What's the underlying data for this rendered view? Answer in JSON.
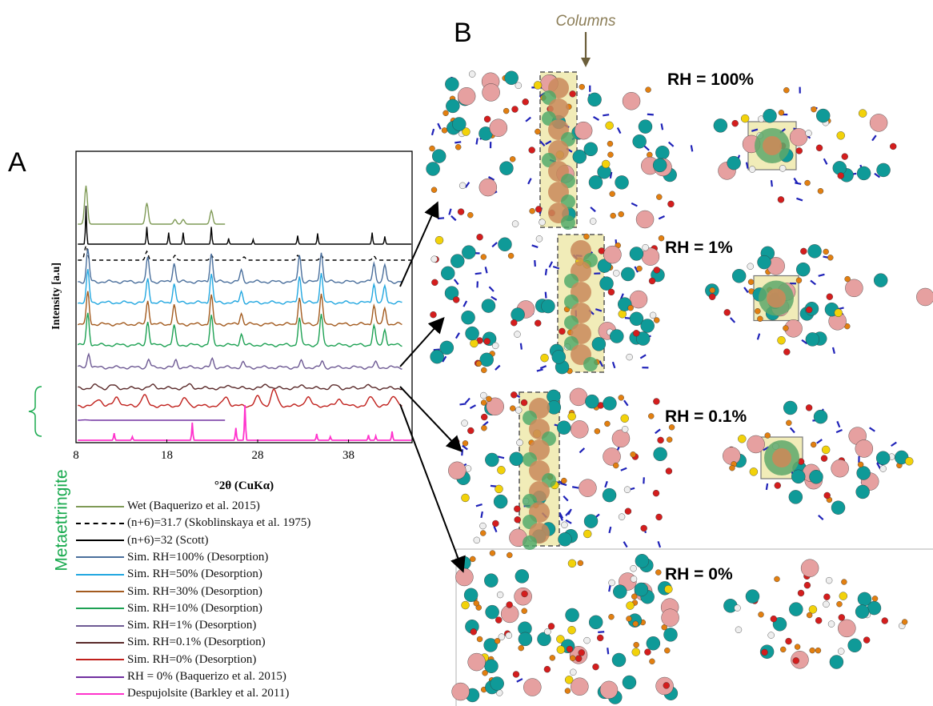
{
  "panels": {
    "a_label": "A",
    "b_label": "B"
  },
  "chart_data": {
    "type": "line",
    "xlabel": "°2θ (CuKα)",
    "ylabel": "Intensity [a.u]",
    "xticks": [
      8,
      18,
      28,
      38
    ],
    "xlim": [
      8,
      45
    ],
    "grid": false,
    "legend_position": "below",
    "bracket_label": "Metaettringite",
    "series": [
      {
        "name": "Wet (Baquerizo et al. 2015)",
        "color": "#7f9a56",
        "dash": "solid",
        "xmax": 24.5,
        "peaks": [
          [
            9.1,
            1.0
          ],
          [
            15.8,
            0.55
          ],
          [
            18.9,
            0.12
          ],
          [
            19.8,
            0.12
          ],
          [
            22.9,
            0.35
          ]
        ]
      },
      {
        "name": "(n+6)=31.7 (Skoblinskaya et al. 1975)",
        "color": "#000000",
        "dash": "dashed",
        "xmax": 45,
        "peaks": [
          [
            9.1,
            0.9
          ],
          [
            15.8,
            0.55
          ],
          [
            18.9,
            0.3
          ],
          [
            22.9,
            0.3
          ],
          [
            26.5,
            0.2
          ],
          [
            32.4,
            0.3
          ],
          [
            35.0,
            0.3
          ],
          [
            40.8,
            0.25
          ]
        ]
      },
      {
        "name": "(n+6)=32 (Scott)",
        "color": "#000000",
        "dash": "solid",
        "xmax": 45,
        "peaks": [
          [
            9.1,
            1.0
          ],
          [
            15.8,
            0.45
          ],
          [
            18.2,
            0.3
          ],
          [
            19.8,
            0.3
          ],
          [
            22.9,
            0.45
          ],
          [
            24.8,
            0.15
          ],
          [
            27.5,
            0.12
          ],
          [
            32.4,
            0.22
          ],
          [
            34.6,
            0.28
          ],
          [
            40.6,
            0.3
          ],
          [
            42.0,
            0.2
          ]
        ]
      },
      {
        "name": "Sim. RH=100% (Desorption)",
        "color": "#4a6f9c",
        "dash": "solid",
        "xmax": 44,
        "peaks": [
          [
            9.3,
            1.0
          ],
          [
            15.9,
            0.75
          ],
          [
            18.8,
            0.6
          ],
          [
            22.9,
            0.9
          ],
          [
            26.2,
            0.35
          ],
          [
            32.6,
            0.85
          ],
          [
            35.0,
            0.95
          ],
          [
            40.8,
            0.6
          ],
          [
            42.0,
            0.5
          ]
        ]
      },
      {
        "name": "Sim. RH=50% (Desorption)",
        "color": "#22a7e0",
        "dash": "solid",
        "xmax": 44,
        "peaks": [
          [
            9.3,
            1.0
          ],
          [
            15.9,
            0.75
          ],
          [
            18.8,
            0.6
          ],
          [
            22.9,
            0.9
          ],
          [
            26.2,
            0.35
          ],
          [
            32.6,
            0.85
          ],
          [
            35.0,
            0.95
          ],
          [
            40.8,
            0.6
          ],
          [
            42.0,
            0.5
          ]
        ]
      },
      {
        "name": "Sim. RH=30% (Desorption)",
        "color": "#a35b1f",
        "dash": "solid",
        "xmax": 44,
        "peaks": [
          [
            9.3,
            1.0
          ],
          [
            15.9,
            0.75
          ],
          [
            18.8,
            0.6
          ],
          [
            22.9,
            0.9
          ],
          [
            26.2,
            0.35
          ],
          [
            32.6,
            0.85
          ],
          [
            35.0,
            0.95
          ],
          [
            40.8,
            0.6
          ],
          [
            42.0,
            0.5
          ]
        ]
      },
      {
        "name": "Sim. RH=10% (Desorption)",
        "color": "#1da153",
        "dash": "solid",
        "xmax": 44,
        "peaks": [
          [
            9.3,
            1.0
          ],
          [
            15.9,
            0.75
          ],
          [
            18.8,
            0.6
          ],
          [
            22.9,
            0.9
          ],
          [
            26.2,
            0.35
          ],
          [
            32.6,
            0.85
          ],
          [
            35.0,
            0.95
          ],
          [
            40.8,
            0.6
          ],
          [
            42.0,
            0.5
          ]
        ]
      },
      {
        "name": "Sim. RH=1% (Desorption)",
        "color": "#6e5a94",
        "dash": "solid",
        "xmax": 44,
        "peaks": [
          [
            9.4,
            0.6
          ],
          [
            16.0,
            0.35
          ],
          [
            19.0,
            0.3
          ],
          [
            23.0,
            0.35
          ],
          [
            26.4,
            0.2
          ],
          [
            32.8,
            0.25
          ],
          [
            35.1,
            0.25
          ],
          [
            41.0,
            0.2
          ]
        ]
      },
      {
        "name": "Sim. RH=0.1% (Desorption)",
        "color": "#5a2a2a",
        "dash": "solid",
        "xmax": 44,
        "peaks": [
          [
            10.2,
            0.3
          ],
          [
            12.0,
            0.3
          ],
          [
            16.5,
            0.3
          ],
          [
            20.5,
            0.35
          ],
          [
            25.0,
            0.3
          ],
          [
            29.0,
            0.4
          ],
          [
            33.0,
            0.3
          ],
          [
            36.5,
            0.3
          ],
          [
            40.0,
            0.3
          ]
        ]
      },
      {
        "name": "Sim. RH=0% (Desorption)",
        "color": "#c0201c",
        "dash": "solid",
        "xmax": 44,
        "peaks": [
          [
            10.5,
            0.4
          ],
          [
            12.5,
            0.5
          ],
          [
            15.5,
            0.6
          ],
          [
            20.0,
            0.4
          ],
          [
            24.5,
            0.5
          ],
          [
            28.0,
            0.5
          ],
          [
            29.8,
            0.9
          ],
          [
            33.5,
            0.5
          ],
          [
            37.0,
            0.4
          ],
          [
            40.5,
            0.5
          ],
          [
            43.0,
            0.6
          ]
        ]
      },
      {
        "name": "RH = 0% (Baquerizo et al. 2015)",
        "color": "#7030a0",
        "dash": "solid",
        "xmax": 24.5,
        "peaks": [
          [
            9.0,
            0.1
          ]
        ]
      },
      {
        "name": "Despujolsite (Barkley et al. 2011)",
        "color": "#ff33cc",
        "dash": "solid",
        "xmax": 45,
        "peaks": [
          [
            12.2,
            0.2
          ],
          [
            14.2,
            0.1
          ],
          [
            20.8,
            0.5
          ],
          [
            25.6,
            0.35
          ],
          [
            26.6,
            1.0
          ],
          [
            34.5,
            0.18
          ],
          [
            36.0,
            0.1
          ],
          [
            40.2,
            0.15
          ],
          [
            41.0,
            0.12
          ],
          [
            42.8,
            0.25
          ]
        ]
      }
    ]
  },
  "panel_b": {
    "columns_label": "Columns",
    "columns_color": "#8c7e58",
    "rh_labels": [
      "RH = 100%",
      "RH = 1%",
      "RH = 0.1%",
      "RH = 0%"
    ]
  }
}
